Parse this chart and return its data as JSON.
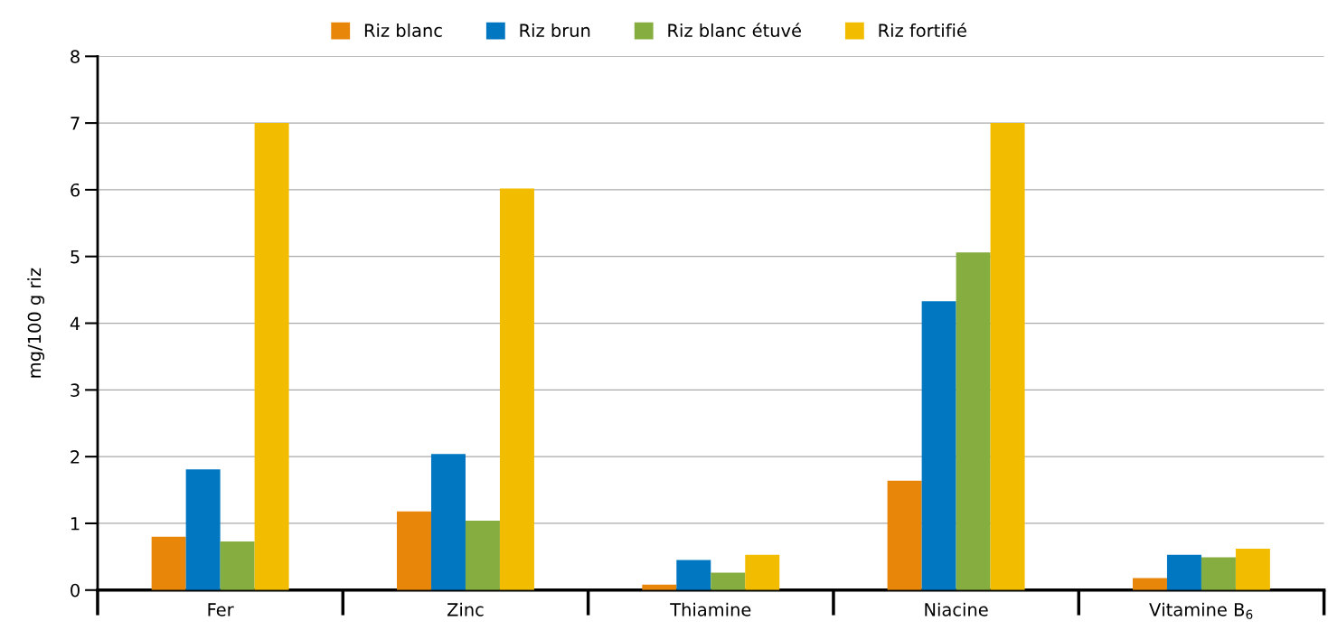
{
  "chart_data": {
    "type": "bar",
    "ylabel": "mg/100 g riz",
    "categories": [
      "Fer",
      "Zinc",
      "Thiamine",
      "Niacine",
      "Vitamine B$_{6}$"
    ],
    "series": [
      {
        "name": "Riz blanc",
        "color": "#e8860a",
        "values": [
          0.8,
          1.18,
          0.08,
          1.64,
          0.18
        ]
      },
      {
        "name": "Riz brun",
        "color": "#0077c0",
        "values": [
          1.81,
          2.04,
          0.45,
          4.33,
          0.53
        ]
      },
      {
        "name": "Riz blanc étuvé",
        "color": "#86ad3f",
        "values": [
          0.73,
          1.04,
          0.26,
          5.06,
          0.49
        ]
      },
      {
        "name": "Riz fortifié",
        "color": "#f2bd00",
        "values": [
          7.0,
          6.02,
          0.53,
          7.0,
          0.62
        ]
      }
    ],
    "ylim": [
      0,
      8
    ],
    "yticks": [
      0,
      1,
      2,
      3,
      4,
      5,
      6,
      7,
      8
    ],
    "grid": "y",
    "legend": "top"
  }
}
